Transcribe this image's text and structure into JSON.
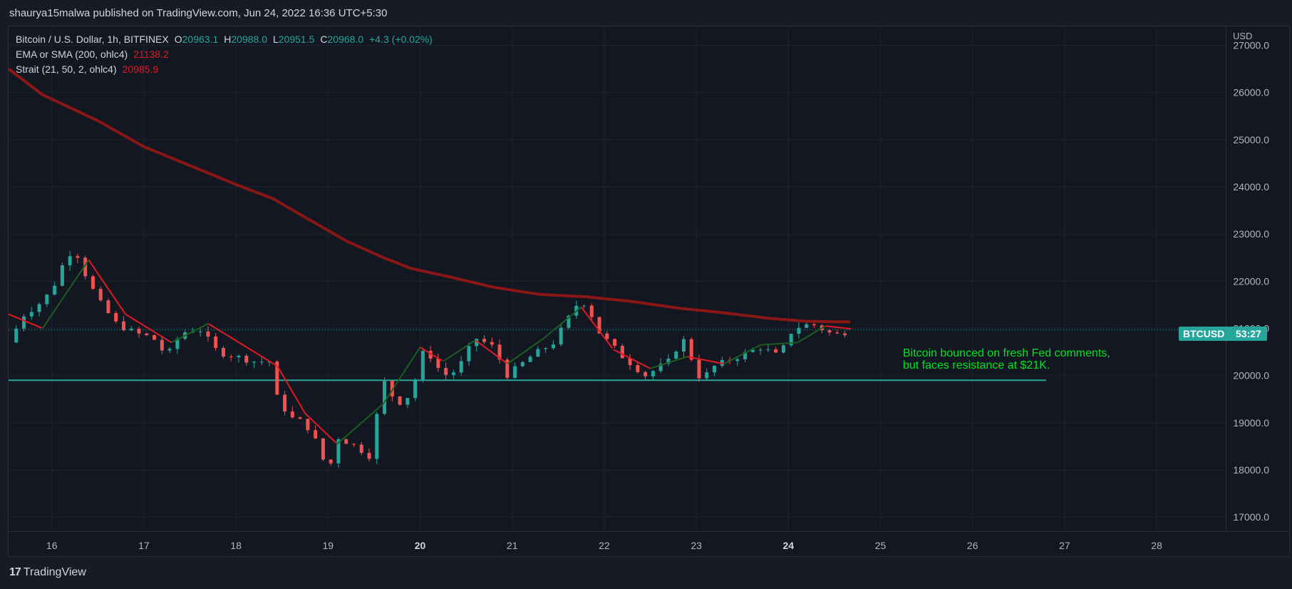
{
  "header": {
    "published_text": "shaurya15malwa published on TradingView.com, Jun 24, 2022 16:36 UTC+5:30"
  },
  "legend": {
    "symbol": "Bitcoin / U.S. Dollar, 1h, BITFINEX",
    "ohlc": [
      {
        "k": "O",
        "v": "20963.1"
      },
      {
        "k": "H",
        "v": "20988.0"
      },
      {
        "k": "L",
        "v": "20951.5"
      },
      {
        "k": "C",
        "v": "20968.0"
      }
    ],
    "change": "+4.3 (+0.02%)",
    "ema": {
      "label": "EMA or SMA (200, ohlc4)",
      "value": "21138.2"
    },
    "strait": {
      "label": "Strait (21, 50, 2, ohlc4)",
      "value": "20985.9"
    }
  },
  "price_label": {
    "symbol": "BTCUSD",
    "countdown": "53:27"
  },
  "annotation": [
    "Bitcoin bounced on fresh Fed comments,",
    "but faces resistance at $21K."
  ],
  "footer": {
    "logo_mark": "17",
    "brand": "TradingView"
  },
  "colors": {
    "up": "#26a69a",
    "down": "#ef5350",
    "ema": "#8b1616",
    "strait": "#e01a22",
    "support": "#26a69a",
    "annotation": "#00e520",
    "text": "#b2b5be"
  },
  "chart_data": {
    "type": "candlestick",
    "currency": "USD",
    "ylim": [
      16700,
      27400
    ],
    "y_ticks": [
      "27000.0",
      "26000.0",
      "25000.0",
      "24000.0",
      "23000.0",
      "22000.0",
      "21000.0",
      "20000.0",
      "19000.0",
      "18000.0",
      "17000.0"
    ],
    "x_ticks": [
      "16",
      "17",
      "18",
      "19",
      "20",
      "21",
      "22",
      "23",
      "24",
      "25",
      "26",
      "27",
      "28"
    ],
    "x_tick_days": [
      16,
      17,
      18,
      19,
      20,
      21,
      22,
      23,
      24,
      25,
      26,
      27,
      28
    ],
    "xlim_days": [
      15.53,
      28.75
    ],
    "last_price": 20968.0,
    "support_level": 19900,
    "support_range_days": [
      15.53,
      26.8
    ],
    "ema": {
      "x_days": [
        15.53,
        15.9,
        16.5,
        17.0,
        17.5,
        18.0,
        18.4,
        18.8,
        19.2,
        19.6,
        19.9,
        20.3,
        20.8,
        21.3,
        21.8,
        22.3,
        22.8,
        23.3,
        23.8,
        24.2,
        24.5,
        24.68
      ],
      "y": [
        26500,
        25950,
        25400,
        24850,
        24450,
        24050,
        23750,
        23300,
        22850,
        22500,
        22270,
        22100,
        21870,
        21720,
        21670,
        21570,
        21430,
        21330,
        21210,
        21150,
        21140,
        21138
      ]
    },
    "strait_anchors": {
      "x_days": [
        15.53,
        15.9,
        16.4,
        16.8,
        17.3,
        17.7,
        18.2,
        18.45,
        18.75,
        19.1,
        19.6,
        20.0,
        20.25,
        20.6,
        20.95,
        21.35,
        21.75,
        22.1,
        22.5,
        22.9,
        23.3,
        23.7,
        24.1,
        24.4,
        24.68
      ],
      "y": [
        21300,
        21000,
        22450,
        21300,
        20700,
        21100,
        20500,
        20200,
        19200,
        18550,
        19400,
        20600,
        20300,
        20750,
        20250,
        20800,
        21450,
        20550,
        20150,
        20400,
        20250,
        20650,
        20700,
        21050,
        20990
      ]
    },
    "close_anchors": {
      "x_days": [
        15.53,
        15.7,
        15.85,
        16.0,
        16.15,
        16.25,
        16.35,
        16.5,
        16.7,
        16.9,
        17.1,
        17.25,
        17.4,
        17.6,
        17.8,
        18.0,
        18.2,
        18.38,
        18.45,
        18.6,
        18.75,
        18.9,
        19.0,
        19.1,
        19.3,
        19.45,
        19.6,
        19.75,
        19.9,
        20.05,
        20.25,
        20.4,
        20.6,
        20.8,
        20.95,
        21.2,
        21.45,
        21.7,
        21.8,
        21.95,
        22.2,
        22.45,
        22.7,
        22.85,
        23.05,
        23.2,
        23.45,
        23.7,
        23.9,
        24.05,
        24.25,
        24.5,
        24.68
      ],
      "y": [
        20700,
        21300,
        21500,
        21800,
        22500,
        22700,
        22200,
        21600,
        21100,
        20900,
        20800,
        20400,
        20900,
        21000,
        20500,
        20400,
        20300,
        20300,
        19500,
        19100,
        19000,
        18500,
        17900,
        18700,
        18500,
        18300,
        19900,
        19400,
        19600,
        20600,
        20000,
        20100,
        20800,
        20600,
        20000,
        20400,
        20700,
        21500,
        21550,
        20900,
        20400,
        20000,
        20300,
        20800,
        19900,
        20200,
        20400,
        20600,
        20400,
        21000,
        21100,
        20850,
        20968
      ]
    }
  }
}
